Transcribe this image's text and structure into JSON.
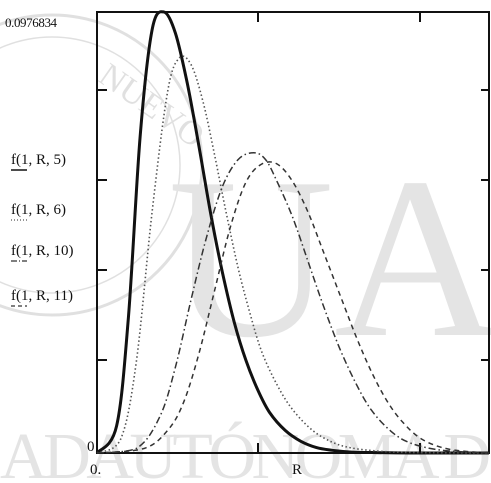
{
  "watermark": {
    "big_letters": "UA",
    "bottom_text": "ADAUTÓNOMA D",
    "seal_text": "NUEVO"
  },
  "chart_data": {
    "type": "line",
    "title": "",
    "xlabel": "R",
    "ylabel": "",
    "x_tick_label": "0.",
    "y_top_label": "0.0976834",
    "y_bottom_label": "0",
    "xlim": [
      0,
      1
    ],
    "ylim": [
      0,
      0.0976834
    ],
    "grid": false,
    "legend": "left-side",
    "series": [
      {
        "name": "f(1, R, 5)",
        "style": "solid-thick",
        "color": "#111111",
        "x": [
          0.0,
          0.05,
          0.08,
          0.11,
          0.14,
          0.17,
          0.2,
          0.23,
          0.26,
          0.29,
          0.32,
          0.35,
          0.38,
          0.41,
          0.44,
          0.48,
          0.52,
          0.56,
          0.6,
          0.65,
          0.7,
          0.8,
          1.0
        ],
        "y": [
          0.0,
          0.006,
          0.03,
          0.07,
          0.0935,
          0.0977,
          0.093,
          0.082,
          0.068,
          0.053,
          0.04,
          0.029,
          0.0205,
          0.014,
          0.009,
          0.005,
          0.0026,
          0.0012,
          0.0006,
          0.0002,
          0.0001,
          0.0,
          0.0
        ]
      },
      {
        "name": "f(1, R, 6)",
        "style": "dotted",
        "color": "#555555",
        "x": [
          0.0,
          0.06,
          0.1,
          0.14,
          0.18,
          0.21,
          0.24,
          0.27,
          0.3,
          0.33,
          0.36,
          0.39,
          0.42,
          0.46,
          0.5,
          0.55,
          0.6,
          0.65,
          0.72,
          0.8,
          1.0
        ],
        "y": [
          0.0,
          0.003,
          0.02,
          0.053,
          0.08,
          0.0875,
          0.086,
          0.078,
          0.066,
          0.053,
          0.041,
          0.031,
          0.0225,
          0.015,
          0.0095,
          0.005,
          0.0024,
          0.0011,
          0.0004,
          0.0001,
          0.0
        ]
      },
      {
        "name": "f(1, R, 10)",
        "style": "dash-dot",
        "color": "#333333",
        "x": [
          0.0,
          0.1,
          0.16,
          0.2,
          0.24,
          0.28,
          0.32,
          0.36,
          0.4,
          0.43,
          0.46,
          0.5,
          0.54,
          0.58,
          0.62,
          0.66,
          0.7,
          0.75,
          0.8,
          0.88,
          1.0
        ],
        "y": [
          0.0,
          0.001,
          0.008,
          0.019,
          0.034,
          0.048,
          0.059,
          0.065,
          0.0665,
          0.065,
          0.06,
          0.052,
          0.042,
          0.032,
          0.023,
          0.0155,
          0.0095,
          0.0048,
          0.0022,
          0.0006,
          0.0
        ]
      },
      {
        "name": "f(1, R, 11)",
        "style": "dashed",
        "color": "#333333",
        "x": [
          0.0,
          0.12,
          0.18,
          0.22,
          0.26,
          0.3,
          0.34,
          0.38,
          0.42,
          0.46,
          0.5,
          0.54,
          0.58,
          0.62,
          0.66,
          0.7,
          0.74,
          0.78,
          0.83,
          0.9,
          1.0
        ],
        "y": [
          0.0,
          0.001,
          0.005,
          0.011,
          0.022,
          0.036,
          0.05,
          0.06,
          0.064,
          0.064,
          0.06,
          0.053,
          0.044,
          0.035,
          0.026,
          0.018,
          0.0115,
          0.0068,
          0.003,
          0.0008,
          0.0
        ]
      }
    ]
  }
}
